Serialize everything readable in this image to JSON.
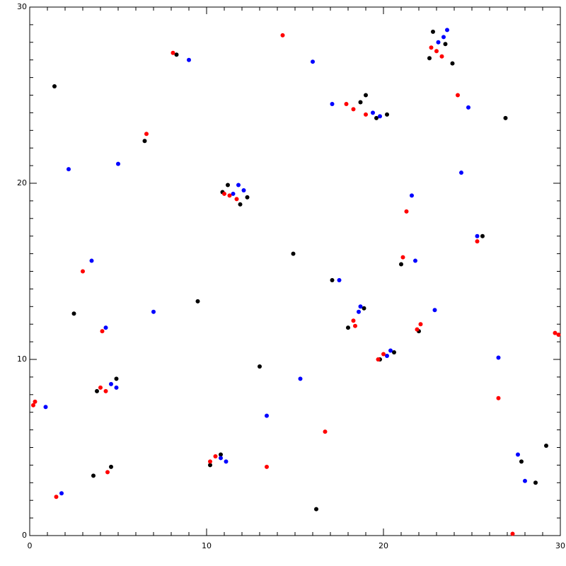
{
  "chart_data": {
    "type": "scatter",
    "xlim": [
      0,
      30
    ],
    "ylim": [
      0,
      30
    ],
    "xticks": [
      0,
      10,
      20,
      30
    ],
    "yticks": [
      0,
      10,
      20,
      30
    ],
    "xminorticks": [
      1,
      2,
      3,
      4,
      5,
      6,
      7,
      8,
      9,
      11,
      12,
      13,
      14,
      15,
      16,
      17,
      18,
      19,
      21,
      22,
      23,
      24,
      25,
      26,
      27,
      28,
      29
    ],
    "yminorticks": [
      1,
      2,
      3,
      4,
      5,
      6,
      7,
      8,
      9,
      11,
      12,
      13,
      14,
      15,
      16,
      17,
      18,
      19,
      21,
      22,
      23,
      24,
      25,
      26,
      27,
      28,
      29
    ],
    "series": [
      {
        "color": "#000000",
        "x": [
          22.6,
          23.5,
          23.9,
          22.8,
          18.7,
          19.6,
          20.2,
          19.0,
          11.2,
          12.3,
          11.9,
          10.9,
          18.0,
          18.9,
          19.8,
          20.6,
          3.8,
          4.9,
          3.6,
          4.6,
          10.2,
          10.8,
          21.0,
          22.0,
          17.1,
          27.8,
          28.6,
          29.2,
          6.5,
          8.3,
          14.9,
          2.5,
          25.6,
          16.2,
          13.0,
          1.4,
          26.9,
          9.5
        ],
        "y": [
          27.1,
          27.9,
          26.8,
          28.6,
          24.6,
          23.7,
          23.9,
          25.0,
          19.9,
          19.2,
          18.8,
          19.5,
          11.8,
          12.9,
          10.0,
          10.4,
          8.2,
          8.9,
          3.4,
          3.9,
          4.0,
          4.6,
          15.4,
          11.6,
          14.5,
          4.2,
          3.0,
          5.1,
          22.4,
          27.3,
          16.0,
          12.6,
          17.0,
          1.5,
          9.6,
          25.5,
          23.7,
          13.3
        ]
      },
      {
        "color": "#0000ff",
        "x": [
          23.4,
          23.6,
          23.1,
          19.4,
          19.8,
          17.1,
          11.8,
          12.1,
          11.5,
          18.7,
          18.6,
          20.4,
          20.2,
          4.6,
          4.9,
          4.3,
          10.8,
          11.1,
          21.8,
          21.6,
          22.9,
          17.5,
          27.6,
          28.0,
          0.9,
          5.0,
          24.4,
          3.5,
          13.4,
          1.8,
          15.3,
          25.3,
          16.0,
          9.0,
          2.2,
          26.5,
          7.0,
          24.8
        ],
        "y": [
          28.3,
          28.7,
          28.0,
          24.0,
          23.8,
          24.5,
          19.9,
          19.6,
          19.4,
          13.0,
          12.7,
          10.5,
          10.2,
          8.6,
          8.4,
          11.8,
          4.4,
          4.2,
          15.6,
          19.3,
          12.8,
          14.5,
          4.6,
          3.1,
          7.3,
          21.1,
          20.6,
          15.6,
          6.8,
          2.4,
          8.9,
          17.0,
          26.9,
          27.0,
          20.8,
          10.1,
          12.7,
          24.3
        ]
      },
      {
        "color": "#ff0000",
        "x": [
          23.0,
          23.3,
          22.7,
          17.9,
          18.3,
          19.0,
          11.3,
          11.7,
          11.0,
          18.3,
          18.4,
          19.7,
          20.0,
          4.3,
          4.0,
          4.4,
          4.1,
          10.2,
          10.5,
          22.1,
          21.9,
          21.3,
          21.1,
          6.6,
          8.1,
          0.3,
          0.2,
          29.7,
          29.9,
          26.5,
          25.3,
          14.3,
          1.5,
          13.4,
          24.2,
          3.0,
          16.7,
          27.3
        ],
        "y": [
          27.5,
          27.2,
          27.7,
          24.5,
          24.2,
          23.9,
          19.3,
          19.1,
          19.4,
          12.2,
          11.9,
          10.0,
          10.3,
          8.2,
          8.4,
          3.6,
          11.6,
          4.2,
          4.5,
          12.0,
          11.7,
          18.4,
          15.8,
          22.8,
          27.4,
          7.6,
          7.4,
          11.5,
          11.4,
          7.8,
          16.7,
          28.4,
          2.2,
          3.9,
          25.0,
          15.0,
          5.9,
          0.1
        ]
      }
    ]
  }
}
